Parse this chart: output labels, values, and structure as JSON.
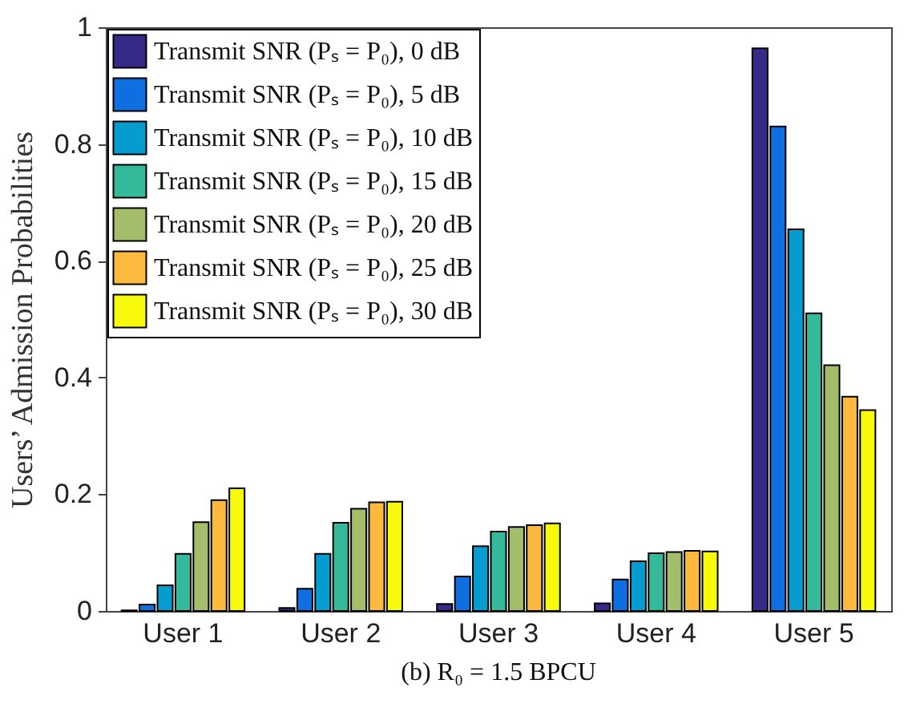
{
  "chart_data": {
    "type": "bar",
    "title": "(b) R₀ = 1.5 BPCU",
    "ylabel": "Users’ Admission Probabilities",
    "categories": [
      "User 1",
      "User 2",
      "User 3",
      "User 4",
      "User 5"
    ],
    "series": [
      {
        "name": "Transmit SNR (Pₛ = P₀), 0 dB",
        "color": "#352a87",
        "values": [
          0.001,
          0.005,
          0.012,
          0.013,
          0.964
        ]
      },
      {
        "name": "Transmit SNR (Pₛ = P₀), 5 dB",
        "color": "#0f6ee0",
        "values": [
          0.011,
          0.038,
          0.059,
          0.054,
          0.83
        ]
      },
      {
        "name": "Transmit SNR (Pₛ = P₀), 10 dB",
        "color": "#079ccf",
        "values": [
          0.044,
          0.098,
          0.111,
          0.085,
          0.654
        ]
      },
      {
        "name": "Transmit SNR (Pₛ = P₀), 15 dB",
        "color": "#35b99b",
        "values": [
          0.098,
          0.151,
          0.136,
          0.099,
          0.51
        ]
      },
      {
        "name": "Transmit SNR (Pₛ = P₀), 20 dB",
        "color": "#a3bd6a",
        "values": [
          0.152,
          0.175,
          0.144,
          0.101,
          0.421
        ]
      },
      {
        "name": "Transmit SNR (Pₛ = P₀), 25 dB",
        "color": "#fbb93d",
        "values": [
          0.19,
          0.186,
          0.147,
          0.103,
          0.367
        ]
      },
      {
        "name": "Transmit SNR (Pₛ = P₀), 30 dB",
        "color": "#f8fa0d",
        "values": [
          0.21,
          0.187,
          0.15,
          0.102,
          0.344
        ]
      }
    ],
    "ylim": [
      0,
      1
    ],
    "yticks": [
      0,
      0.2,
      0.4,
      0.6,
      0.8,
      1
    ],
    "legend": "top left"
  }
}
